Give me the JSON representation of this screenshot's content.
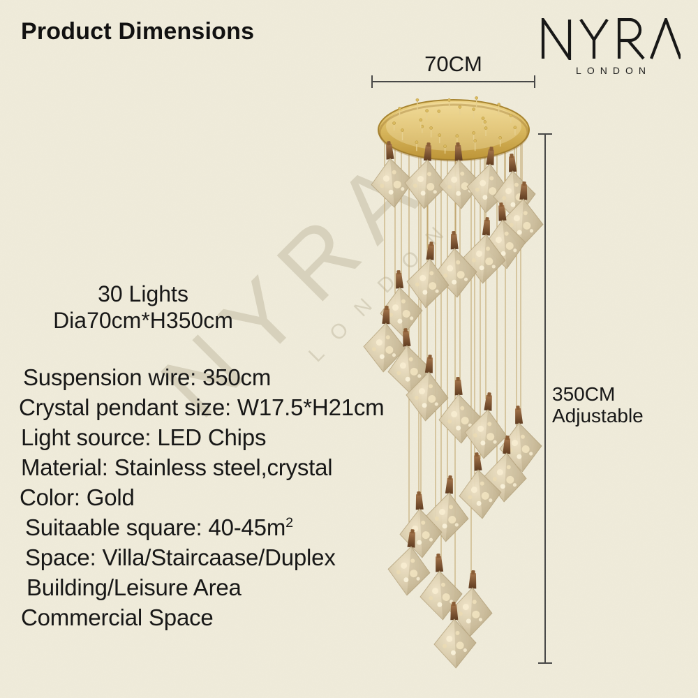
{
  "page": {
    "title": "Product Dimensions"
  },
  "brand": {
    "name": "NYRA",
    "subtitle": "LONDON"
  },
  "dimensions": {
    "width": "70CM",
    "height": "350CM",
    "height_note": "Adjustable"
  },
  "summary": {
    "line1": "30 Lights",
    "line2": "Dia70cm*H350cm"
  },
  "specs": {
    "lines": [
      {
        "text": "Suspension wire: 350cm"
      },
      {
        "text": "Crystal pendant size: W17.5*H21cm"
      },
      {
        "text": "Light source: LED Chips"
      },
      {
        "text": "Material: Stainless steel,crystal"
      },
      {
        "text": "Color: Gold"
      },
      {
        "text": "Suitaable square: 40-45m",
        "sup": "2"
      },
      {
        "text": "Space: Villa/Staircaase/Duplex"
      },
      {
        "text": "Building/Leisure Area"
      },
      {
        "text": "Commercial Space"
      }
    ]
  },
  "watermark": {
    "line1": "NYRA",
    "line2": "LONDON"
  },
  "colors": {
    "background": "#f0ecdb",
    "gold": "#c9a23c",
    "bronze": "#6e4526",
    "text": "#141414"
  }
}
